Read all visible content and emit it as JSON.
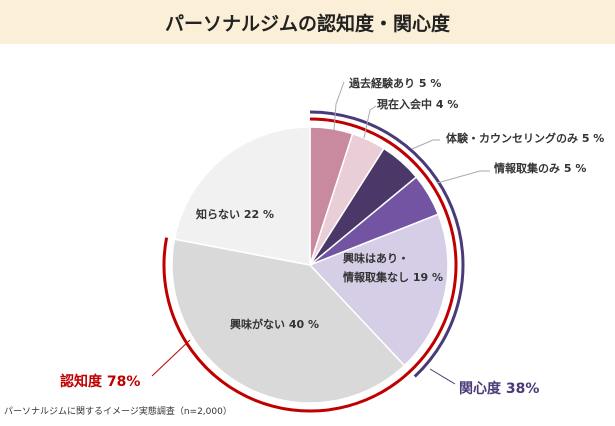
{
  "chart_data": {
    "type": "pie",
    "title": "パーソナルジムの認知度・関心度",
    "start": "12 o'clock, clockwise",
    "slices": [
      {
        "label": "過去経験あり",
        "value": 5,
        "color": "#c98a9f"
      },
      {
        "label": "現在入会中",
        "value": 4,
        "color": "#e9cdd7"
      },
      {
        "label": "体験・カウンセリングのみ",
        "value": 5,
        "color": "#4b3768"
      },
      {
        "label": "情報取集のみ",
        "value": 5,
        "color": "#7254a2"
      },
      {
        "label": "興味はあり・情報取集なし",
        "value": 19,
        "color": "#d6cde6"
      },
      {
        "label": "興味がない",
        "value": 40,
        "color": "#d9d9d9"
      },
      {
        "label": "知らない",
        "value": 22,
        "color": "#f1f1f1"
      }
    ],
    "slice_texts": [
      "過去経験あり 5 %",
      "現在入会中 4 %",
      "体験・カウンセリングのみ 5 %",
      "情報取集のみ 5 %",
      "興味はあり・",
      "情報取集なし 19 %",
      "興味がない 40 %",
      "知らない 22 %"
    ],
    "brackets": [
      {
        "label": "認知度 78%",
        "value": 78,
        "color": "#c00000"
      },
      {
        "label": "関心度 38%",
        "value": 38,
        "color": "#4b3a78"
      }
    ],
    "note": "パーソナルジムに関するイメージ実態調査（n=2,000）"
  }
}
